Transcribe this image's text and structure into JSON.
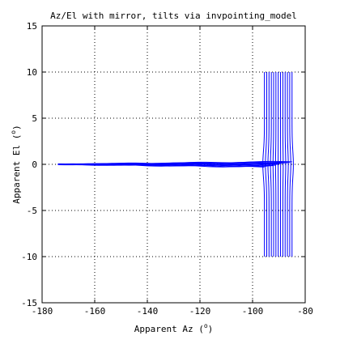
{
  "chart_data": {
    "type": "line",
    "title": "Az/El with mirror, tilts via invpointing_model",
    "xlabel": "Apparent Az (",
    "xlabel_suffix": ")",
    "ylabel": "Apparent El (",
    "ylabel_suffix": ")",
    "degree_symbol": "o",
    "xlim": [
      -180,
      -80
    ],
    "ylim": [
      -15,
      15
    ],
    "xticks": [
      -180,
      -160,
      -140,
      -120,
      -100,
      -80
    ],
    "yticks": [
      -15,
      -10,
      -5,
      0,
      5,
      10,
      15
    ],
    "grid": true,
    "line_color": "#0000ff",
    "series_count": 13,
    "vertical_lines": {
      "x_start": -95.5,
      "x_end": -85.0,
      "count": 13,
      "y_range": [
        -10,
        10
      ]
    },
    "horizontal_lines": {
      "y_offsets": [
        -0.3,
        -0.25,
        -0.2,
        -0.15,
        -0.1,
        -0.05,
        0,
        0.05,
        0.1,
        0.15,
        0.2,
        0.25,
        0.3
      ],
      "x_start": -174,
      "x_end": -95.5
    }
  }
}
